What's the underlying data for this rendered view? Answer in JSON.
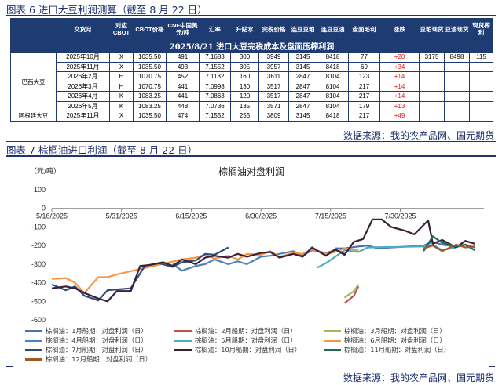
{
  "fig6": {
    "title": "图表 6 进口大豆利润测算（截至 8 月 22 日）",
    "table_title": "2025/8/21 进口大豆完税成本及盘面压榨利润",
    "headers": [
      "交货月",
      "对应CBOT",
      "CBOT价格",
      "CNF中国美元/吨",
      "汇率",
      "升贴水",
      "完税价格",
      "连豆豆粕",
      "连豆豆油",
      "盘面毛利",
      "涨跌",
      "豆粕现货",
      "豆油现货",
      "现货榨利"
    ],
    "group_label_1": "巴西大豆",
    "group_label_2": "阿根廷大豆",
    "rows": [
      [
        "2025年10月",
        "X",
        "1035.50",
        "491",
        "7.1683",
        "300",
        "3949",
        "3145",
        "8418",
        "77",
        "+20",
        "3175",
        "8498",
        "115"
      ],
      [
        "2025年11月",
        "X",
        "1035.50",
        "493",
        "7.1552",
        "305",
        "3957",
        "3145",
        "8418",
        "69",
        "+34",
        "",
        "",
        ""
      ],
      [
        "2026年2月",
        "H",
        "1070.75",
        "452",
        "7.1132",
        "160",
        "3611",
        "2847",
        "8104",
        "123",
        "+14",
        "",
        "",
        ""
      ],
      [
        "2026年3月",
        "H",
        "1070.75",
        "441",
        "7.0998",
        "130",
        "3517",
        "2847",
        "8104",
        "217",
        "+14",
        "",
        "",
        ""
      ],
      [
        "2026年4月",
        "K",
        "1083.25",
        "441",
        "7.0863",
        "120",
        "3517",
        "2847",
        "8104",
        "217",
        "+14",
        "",
        "",
        ""
      ],
      [
        "2026年5月",
        "K",
        "1083.25",
        "448",
        "7.0736",
        "135",
        "3571",
        "2847",
        "8104",
        "179",
        "+13",
        "",
        "",
        ""
      ],
      [
        "2025年11月",
        "X",
        "1035.50",
        "474",
        "7.1552",
        "255",
        "3809",
        "3145",
        "8418",
        "217",
        "+49",
        "",
        "",
        ""
      ]
    ],
    "source": "数据来源：我的农产品网、国元期货"
  },
  "fig7": {
    "title": "图表 7 棕榈油进口利润（截至 8 月 22 日）",
    "source": "数据来源：我的农产品网、国元期货"
  },
  "chart_data": {
    "type": "line",
    "title": "棕榈油对盘利润",
    "ylabel": "（元/吨）",
    "xlabel": "",
    "ylim": [
      -600,
      100
    ],
    "yticks": [
      100,
      0,
      -100,
      -200,
      -300,
      -400,
      -500,
      -600
    ],
    "xlim": [
      "2025-05-16",
      "2025-08-17"
    ],
    "xticks": [
      "5/16/2025",
      "5/31/2025",
      "6/15/2025",
      "6/30/2025",
      "7/15/2025",
      "7/30/2025"
    ],
    "grid": false,
    "legend_position": "bottom",
    "series": [
      {
        "name": "棕榈油：1月船期：对盘利润（日）",
        "color": "#4a6fb3",
        "points": [
          [
            "2025-07-16",
            "-215"
          ],
          [
            "2025-07-18",
            "-215"
          ],
          [
            "2025-07-21",
            "-205"
          ],
          [
            "2025-07-23",
            "-200"
          ],
          [
            "2025-07-25",
            "-215"
          ],
          [
            "2025-08-04",
            "-200"
          ],
          [
            "2025-08-06",
            "-180"
          ],
          [
            "2025-08-08",
            "-195"
          ],
          [
            "2025-08-11",
            "-205"
          ],
          [
            "2025-08-13",
            "-195"
          ],
          [
            "2025-08-15",
            "-210"
          ]
        ]
      },
      {
        "name": "棕榈油：2月船期：对盘利润（日）",
        "color": "#c0504d",
        "points": [
          [
            "2025-07-18",
            "-510"
          ],
          [
            "2025-07-20",
            "-470"
          ],
          [
            "2025-07-21",
            "-420"
          ]
        ]
      },
      {
        "name": "棕榈油：3月船期：对盘利润（日）",
        "color": "#9bbb59",
        "points": [
          [
            "2025-07-18",
            "-480"
          ],
          [
            "2025-07-20",
            "-445"
          ],
          [
            "2025-07-21",
            "-410"
          ]
        ]
      },
      {
        "name": "棕榈油：4月船期：对盘利润（日）",
        "color": "#4f81bd",
        "points": [
          [
            "2025-06-11",
            "-300"
          ],
          [
            "2025-06-13",
            "-335"
          ],
          [
            "2025-06-16",
            "-310"
          ],
          [
            "2025-06-18",
            "-300"
          ],
          [
            "2025-06-20",
            "-275"
          ],
          [
            "2025-06-23",
            "-300"
          ],
          [
            "2025-06-25",
            "-285"
          ],
          [
            "2025-06-27",
            "-300"
          ],
          [
            "2025-06-30",
            "-260"
          ],
          [
            "2025-07-02",
            "-255"
          ],
          [
            "2025-07-04",
            "-245"
          ],
          [
            "2025-07-07",
            "-230"
          ],
          [
            "2025-07-09",
            "-255"
          ],
          [
            "2025-07-11",
            "-225"
          ],
          [
            "2025-07-14",
            "-240"
          ],
          [
            "2025-07-16",
            "-225"
          ],
          [
            "2025-07-18",
            "-240"
          ]
        ]
      },
      {
        "name": "棕榈油：5月船期：对盘利润（日）",
        "color": "#4bacc6",
        "points": [
          [
            "2025-07-12",
            "-320"
          ],
          [
            "2025-07-14",
            "-295"
          ],
          [
            "2025-07-16",
            "-260"
          ],
          [
            "2025-07-18",
            "-225"
          ],
          [
            "2025-07-21",
            "-235"
          ],
          [
            "2025-07-23",
            "-210"
          ],
          [
            "2025-08-04",
            "-205"
          ],
          [
            "2025-08-06",
            "-195"
          ],
          [
            "2025-08-08",
            "-225"
          ],
          [
            "2025-08-11",
            "-210"
          ],
          [
            "2025-08-13",
            "-195"
          ],
          [
            "2025-08-15",
            "-225"
          ]
        ]
      },
      {
        "name": "棕榈油：6月船期：对盘利润（日）",
        "color": "#f79646",
        "points": [
          [
            "2025-05-16",
            "-380"
          ],
          [
            "2025-05-19",
            "-375"
          ],
          [
            "2025-05-21",
            "-400"
          ],
          [
            "2025-05-23",
            "-455"
          ],
          [
            "2025-05-26",
            "-370"
          ],
          [
            "2025-05-28",
            "-370"
          ],
          [
            "2025-05-30",
            "-355"
          ],
          [
            "2025-06-13",
            "-275"
          ],
          [
            "2025-06-16",
            "-265"
          ],
          [
            "2025-06-18",
            "-250"
          ],
          [
            "2025-06-20",
            "-270"
          ],
          [
            "2025-06-23",
            "-255"
          ],
          [
            "2025-06-25",
            "-275"
          ],
          [
            "2025-06-27",
            "-245"
          ],
          [
            "2025-06-30",
            "-250"
          ],
          [
            "2025-07-02",
            "-230"
          ],
          [
            "2025-07-04",
            "-260"
          ],
          [
            "2025-07-07",
            "-240"
          ],
          [
            "2025-07-09",
            "-245"
          ],
          [
            "2025-07-11",
            "-220"
          ],
          [
            "2025-07-14",
            "-245"
          ],
          [
            "2025-07-16",
            "-235"
          ],
          [
            "2025-07-18",
            "-215"
          ],
          [
            "2025-07-21",
            "-225"
          ]
        ]
      },
      {
        "name": "棕榈油：7月船期：对盘利润（日）",
        "color": "#2e4d7a",
        "points": [
          [
            "2025-05-16",
            "-410"
          ],
          [
            "2025-05-19",
            "-440"
          ],
          [
            "2025-05-21",
            "-420"
          ],
          [
            "2025-05-23",
            "-470"
          ],
          [
            "2025-05-26",
            "-495"
          ],
          [
            "2025-05-28",
            "-440"
          ],
          [
            "2025-06-02",
            "-430"
          ],
          [
            "2025-06-05",
            "-310"
          ],
          [
            "2025-06-08",
            "-295"
          ],
          [
            "2025-06-11",
            "-315"
          ],
          [
            "2025-06-13",
            "-290"
          ],
          [
            "2025-06-16",
            "-280"
          ],
          [
            "2025-06-18",
            "-245"
          ],
          [
            "2025-06-20",
            "-250"
          ],
          [
            "2025-06-23",
            "-210"
          ]
        ]
      },
      {
        "name": "棕榈油：10月船期：对盘利润（日）",
        "color": "#3b2036",
        "points": [
          [
            "2025-05-16",
            "-430"
          ],
          [
            "2025-05-19",
            "-420"
          ],
          [
            "2025-05-21",
            "-430"
          ],
          [
            "2025-05-23",
            "-455"
          ],
          [
            "2025-05-26",
            "-485"
          ],
          [
            "2025-05-28",
            "-500"
          ],
          [
            "2025-05-30",
            "-445"
          ],
          [
            "2025-06-02",
            "-445"
          ],
          [
            "2025-06-04",
            "-310"
          ],
          [
            "2025-06-06",
            "-305"
          ],
          [
            "2025-06-09",
            "-290"
          ],
          [
            "2025-06-11",
            "-310"
          ],
          [
            "2025-06-13",
            "-275"
          ],
          [
            "2025-06-16",
            "-300"
          ],
          [
            "2025-06-18",
            "-265"
          ],
          [
            "2025-06-20",
            "-255"
          ],
          [
            "2025-06-23",
            "-265"
          ],
          [
            "2025-06-25",
            "-245"
          ],
          [
            "2025-06-27",
            "-260"
          ],
          [
            "2025-06-30",
            "-240"
          ],
          [
            "2025-07-02",
            "-235"
          ],
          [
            "2025-07-04",
            "-265"
          ],
          [
            "2025-07-07",
            "-245"
          ],
          [
            "2025-07-09",
            "-260"
          ],
          [
            "2025-07-11",
            "-210"
          ],
          [
            "2025-07-14",
            "-255"
          ],
          [
            "2025-07-16",
            "-220"
          ],
          [
            "2025-07-18",
            "-250"
          ],
          [
            "2025-07-20",
            "-180"
          ],
          [
            "2025-07-22",
            "-165"
          ],
          [
            "2025-07-24",
            "-60"
          ],
          [
            "2025-07-26",
            "-60"
          ],
          [
            "2025-07-28",
            "-100"
          ],
          [
            "2025-07-31",
            "-120"
          ],
          [
            "2025-08-02",
            "-140"
          ],
          [
            "2025-08-05",
            "-65"
          ],
          [
            "2025-08-06",
            "-190"
          ],
          [
            "2025-08-08",
            "-170"
          ],
          [
            "2025-08-11",
            "-210"
          ],
          [
            "2025-08-13",
            "-175"
          ],
          [
            "2025-08-15",
            "-190"
          ]
        ]
      },
      {
        "name": "棕榈油：11月船期：对盘利润（日）",
        "color": "#1f6b5a",
        "points": [
          [
            "2025-08-04",
            "-230"
          ],
          [
            "2025-08-06",
            "-150"
          ],
          [
            "2025-08-08",
            "-185"
          ],
          [
            "2025-08-11",
            "-205"
          ],
          [
            "2025-08-13",
            "-195"
          ],
          [
            "2025-08-15",
            "-225"
          ]
        ]
      },
      {
        "name": "棕榈油：12月船期：对盘利润（日）",
        "color": "#a35722",
        "points": [
          [
            "2025-08-04",
            "-215"
          ],
          [
            "2025-08-06",
            "-200"
          ],
          [
            "2025-08-08",
            "-230"
          ],
          [
            "2025-08-11",
            "-195"
          ],
          [
            "2025-08-13",
            "-210"
          ],
          [
            "2025-08-15",
            "-205"
          ]
        ]
      }
    ]
  }
}
